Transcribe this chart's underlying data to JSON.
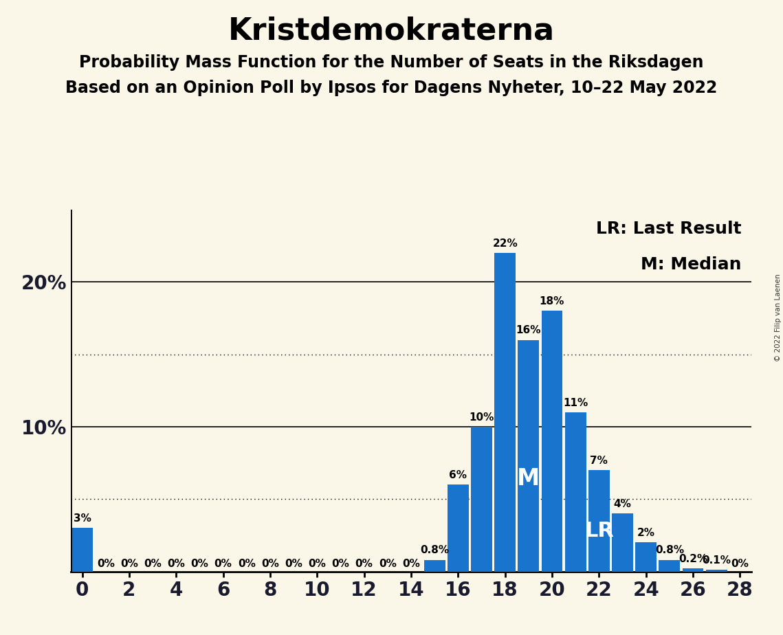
{
  "title": "Kristdemokraterna",
  "subtitle1": "Probability Mass Function for the Number of Seats in the Riksdagen",
  "subtitle2": "Based on an Opinion Poll by Ipsos for Dagens Nyheter, 10–22 May 2022",
  "copyright": "© 2022 Filip van Laenen",
  "legend_lr": "LR: Last Result",
  "legend_m": "M: Median",
  "background_color": "#faf6e8",
  "bar_color": "#1874cd",
  "seats": [
    0,
    1,
    2,
    3,
    4,
    5,
    6,
    7,
    8,
    9,
    10,
    11,
    12,
    13,
    14,
    15,
    16,
    17,
    18,
    19,
    20,
    21,
    22,
    23,
    24,
    25,
    26,
    27,
    28
  ],
  "probabilities": [
    3,
    0,
    0,
    0,
    0,
    0,
    0,
    0,
    0,
    0,
    0,
    0,
    0,
    0,
    0,
    0.8,
    6,
    10,
    22,
    16,
    18,
    11,
    7,
    4,
    2,
    0.8,
    0.2,
    0.1,
    0
  ],
  "bar_labels": [
    "3%",
    "0%",
    "0%",
    "0%",
    "0%",
    "0%",
    "0%",
    "0%",
    "0%",
    "0%",
    "0%",
    "0%",
    "0%",
    "0%",
    "0%",
    "0.8%",
    "6%",
    "10%",
    "22%",
    "16%",
    "18%",
    "11%",
    "7%",
    "4%",
    "2%",
    "0.8%",
    "0.2%",
    "0.1%",
    "0%"
  ],
  "median_seat": 19,
  "lr_seat": 22,
  "xlim": [
    -0.5,
    28.5
  ],
  "ylim": [
    0,
    25
  ],
  "dotted_lines": [
    5,
    15
  ],
  "solid_lines": [
    10,
    20
  ],
  "title_fontsize": 32,
  "subtitle_fontsize": 17,
  "bar_label_fontsize": 11,
  "axis_tick_fontsize": 20,
  "legend_fontsize": 18,
  "bar_width": 0.9
}
